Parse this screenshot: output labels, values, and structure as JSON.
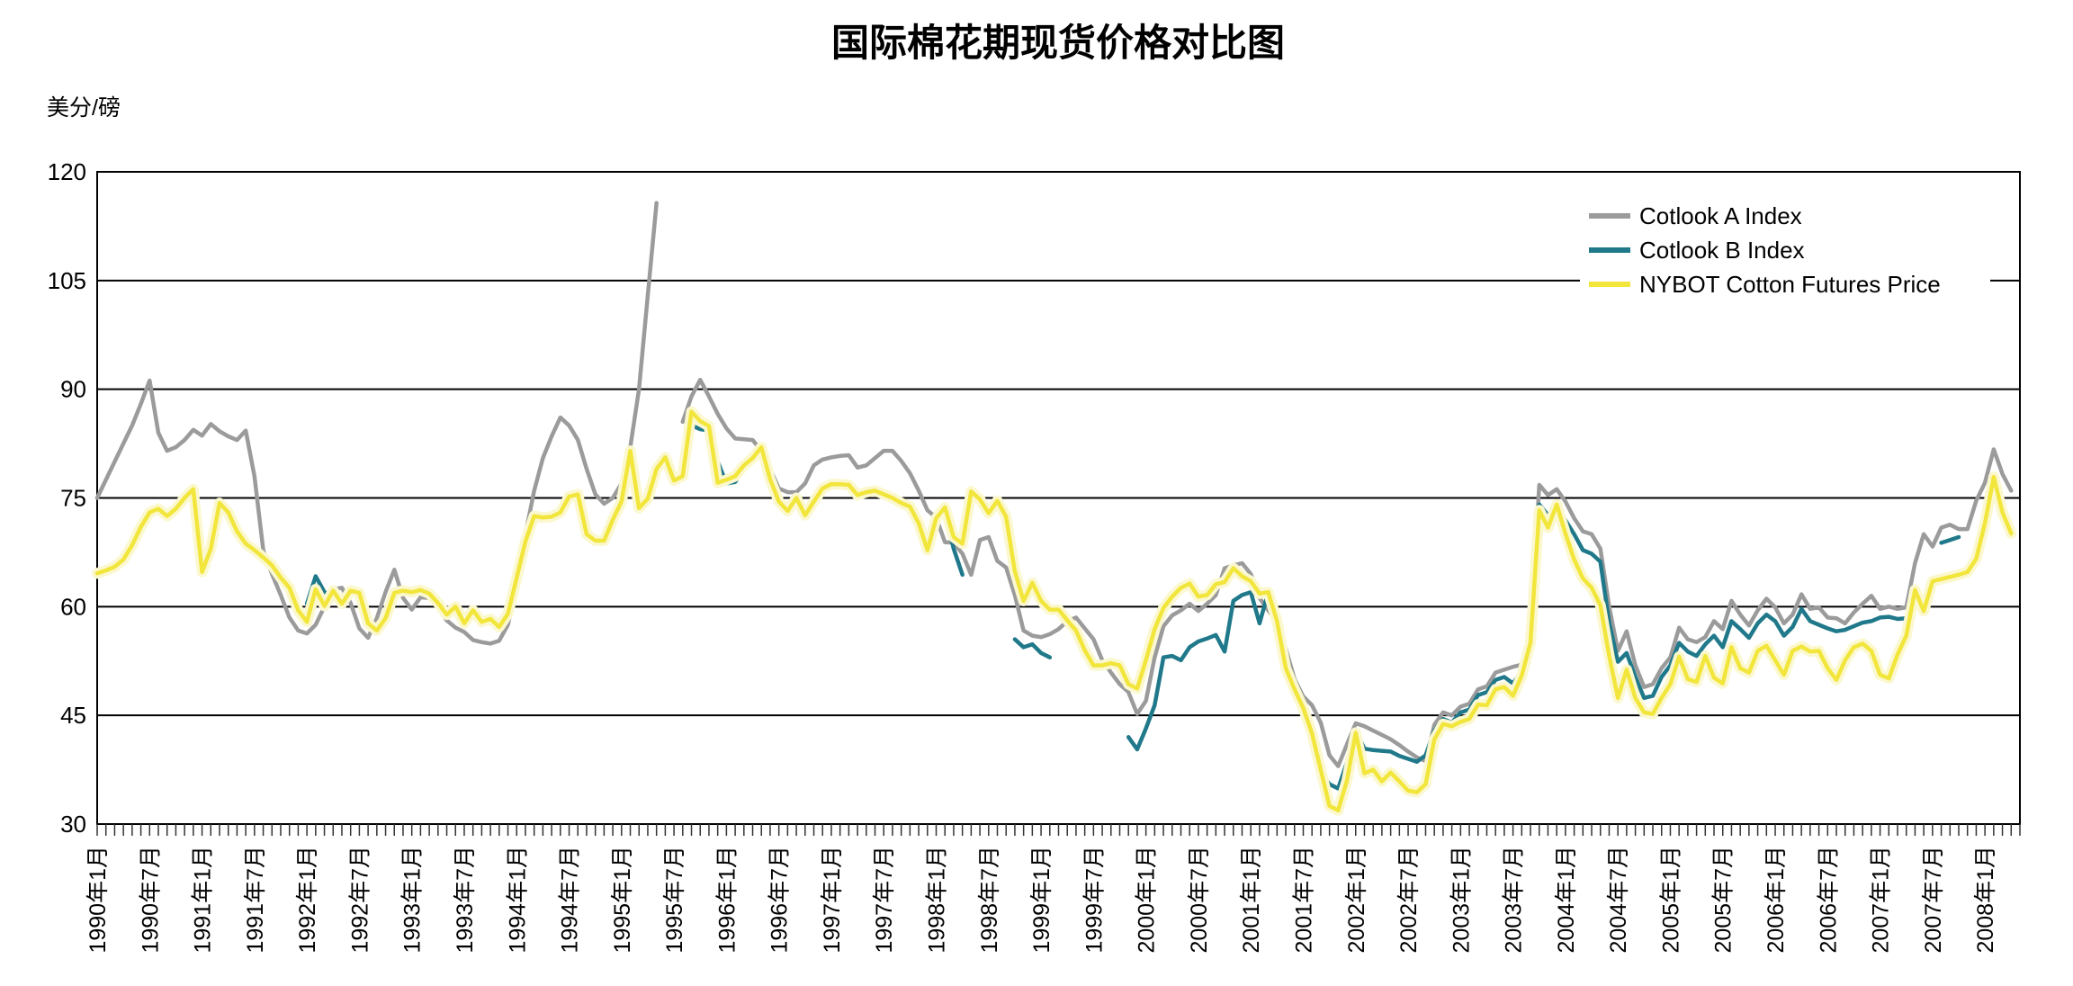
{
  "title": "国际棉花期现货价格对比图",
  "y_axis_unit": "美分/磅",
  "chart_data": {
    "type": "line",
    "title": "国际棉花期现货价格对比图",
    "xlabel": "",
    "ylabel": "美分/磅",
    "ylim": [
      30,
      120
    ],
    "y_ticks": [
      30,
      45,
      60,
      75,
      90,
      105,
      120
    ],
    "grid": "horizontal-black-lines",
    "legend_position": "top-right-inside",
    "x_start": "1990年1月",
    "x_end": "2008年4月",
    "x_points_monthly": 220,
    "x_tick_labels": [
      "1990年1月",
      "1990年7月",
      "1991年1月",
      "1991年7月",
      "1992年1月",
      "1992年7月",
      "1993年1月",
      "1993年7月",
      "1994年1月",
      "1994年7月",
      "1995年1月",
      "1995年7月",
      "1996年1月",
      "1996年7月",
      "1997年1月",
      "1997年7月",
      "1998年1月",
      "1998年7月",
      "1999年1月",
      "1999年7月",
      "2000年1月",
      "2000年7月",
      "2001年1月",
      "2001年7月",
      "2002年1月",
      "2002年7月",
      "2003年1月",
      "2003年7月",
      "2004年1月",
      "2004年7月",
      "2005年1月",
      "2005年7月",
      "2006年1月",
      "2006年7月",
      "2007年1月",
      "2007年7月",
      "2008年1月"
    ],
    "x_label_rotation_deg": -90,
    "series": [
      {
        "name": "Cotlook A Index",
        "color": "#9b9b9b",
        "values": [
          75.0,
          77.5,
          80.0,
          82.5,
          85.0,
          88.0,
          91.2,
          84.0,
          81.5,
          82.0,
          83.0,
          84.4,
          83.6,
          85.2,
          84.2,
          83.5,
          83.0,
          84.3,
          78.0,
          67.8,
          64.5,
          61.6,
          58.5,
          56.7,
          56.3,
          57.5,
          60.0,
          62.4,
          62.6,
          60.5,
          57.0,
          55.7,
          58.4,
          62.0,
          65.1,
          61.2,
          59.6,
          61.3,
          61.2,
          59.8,
          58.1,
          57.1,
          56.5,
          55.4,
          55.1,
          54.9,
          55.3,
          57.5,
          63.0,
          70.0,
          76.0,
          80.5,
          83.5,
          86.1,
          85.0,
          83.0,
          79.0,
          75.5,
          74.2,
          75.0,
          77.0,
          82.0,
          90.0,
          103.0,
          115.7,
          null,
          null,
          85.5,
          89.0,
          91.3,
          89.0,
          86.6,
          84.6,
          83.2,
          83.1,
          83.0,
          81.5,
          79.0,
          76.3,
          75.8,
          75.8,
          77.0,
          79.5,
          80.3,
          80.6,
          80.8,
          80.9,
          79.2,
          79.5,
          80.5,
          81.5,
          81.5,
          80.1,
          78.4,
          76.0,
          73.3,
          72.3,
          68.9,
          68.8,
          67.3,
          64.4,
          69.2,
          69.6,
          66.3,
          65.4,
          61.6,
          56.7,
          56.0,
          55.8,
          56.2,
          56.9,
          58.0,
          58.5,
          57.0,
          55.5,
          52.6,
          50.9,
          49.3,
          48.2,
          45.2,
          47.0,
          53.0,
          57.3,
          58.8,
          59.5,
          60.4,
          59.4,
          60.4,
          61.6,
          65.3,
          65.7,
          66.0,
          64.5,
          61.2,
          59.5,
          57.9,
          54.2,
          50.0,
          47.6,
          46.4,
          44.0,
          39.5,
          38.0,
          41.0,
          43.9,
          43.5,
          42.9,
          42.3,
          41.7,
          40.9,
          40.0,
          39.2,
          38.7,
          43.7,
          45.4,
          45.0,
          46.2,
          46.6,
          48.6,
          49.0,
          50.9,
          51.3,
          51.7,
          52.0,
          56.0,
          76.8,
          75.4,
          76.2,
          74.5,
          72.2,
          70.4,
          70.0,
          68.0,
          60.0,
          53.9,
          56.6,
          51.9,
          48.9,
          49.3,
          51.5,
          53.0,
          57.1,
          55.5,
          55.1,
          55.8,
          58.0,
          56.9,
          60.8,
          58.9,
          57.4,
          59.5,
          61.1,
          59.9,
          57.7,
          58.9,
          61.7,
          59.7,
          59.9,
          58.5,
          58.4,
          57.7,
          59.2,
          60.4,
          61.5,
          59.7,
          60.0,
          59.7,
          59.9,
          66.0,
          70.0,
          68.3,
          70.9,
          71.3,
          70.7,
          70.7,
          74.6,
          77.1,
          81.7,
          78.3,
          76.0
        ]
      },
      {
        "name": "Cotlook B Index",
        "color": "#20798a",
        "values": [
          null,
          null,
          null,
          null,
          null,
          null,
          null,
          null,
          null,
          null,
          null,
          null,
          null,
          null,
          null,
          null,
          null,
          null,
          null,
          null,
          null,
          null,
          null,
          null,
          60.4,
          64.2,
          62.0,
          61.4,
          null,
          null,
          null,
          null,
          null,
          null,
          null,
          null,
          null,
          null,
          null,
          null,
          null,
          null,
          null,
          null,
          null,
          null,
          null,
          null,
          null,
          null,
          null,
          null,
          null,
          null,
          null,
          null,
          null,
          null,
          null,
          null,
          null,
          null,
          null,
          null,
          null,
          null,
          null,
          null,
          85.0,
          84.5,
          84.3,
          80.0,
          77.0,
          77.2,
          79.0,
          80.2,
          81.5,
          77.2,
          74.2,
          72.9,
          74.6,
          72.2,
          74.0,
          null,
          null,
          null,
          null,
          null,
          null,
          null,
          null,
          null,
          null,
          null,
          null,
          null,
          null,
          73.2,
          68.0,
          64.4,
          null,
          null,
          null,
          null,
          null,
          55.5,
          54.4,
          54.8,
          53.6,
          53.0,
          null,
          null,
          null,
          null,
          null,
          null,
          null,
          null,
          42.0,
          40.3,
          43.2,
          46.4,
          53.0,
          53.2,
          52.6,
          54.4,
          55.2,
          55.6,
          56.1,
          53.8,
          60.8,
          61.6,
          62.0,
          57.7,
          62.0,
          56.9,
          52.3,
          48.5,
          46.4,
          43.0,
          37.0,
          35.5,
          34.9,
          38.5,
          42.9,
          40.4,
          40.2,
          40.1,
          40.0,
          39.4,
          39.0,
          38.6,
          39.5,
          42.9,
          44.5,
          44.0,
          45.4,
          45.8,
          47.8,
          48.2,
          49.9,
          50.3,
          49.4,
          51.1,
          55.0,
          74.1,
          72.6,
          74.3,
          71.9,
          70.0,
          67.8,
          67.3,
          66.2,
          57.8,
          52.4,
          53.6,
          50.3,
          47.4,
          47.7,
          50.3,
          51.9,
          55.0,
          53.8,
          53.2,
          54.8,
          56.0,
          54.4,
          58.0,
          56.9,
          55.7,
          57.7,
          58.9,
          58.0,
          56.0,
          57.2,
          59.7,
          58.0,
          57.5,
          57.0,
          56.6,
          56.8,
          57.3,
          57.8,
          58.0,
          58.5,
          58.6,
          58.3,
          58.4,
          null,
          null,
          null,
          68.8,
          69.2,
          69.6,
          null,
          null,
          null,
          null,
          null,
          null
        ]
      },
      {
        "name": "NYBOT Cotton Futures Price",
        "color": "#f2e63c",
        "halo_color": "#fbf8cf",
        "values": [
          64.6,
          65.0,
          65.5,
          66.5,
          68.5,
          71.0,
          73.0,
          73.5,
          72.5,
          73.5,
          75.0,
          76.2,
          64.8,
          68.0,
          74.3,
          73.0,
          70.4,
          68.7,
          67.8,
          66.8,
          65.7,
          64.0,
          62.6,
          59.5,
          57.9,
          62.4,
          60.1,
          62.2,
          60.4,
          62.2,
          61.9,
          57.7,
          56.7,
          58.4,
          61.9,
          62.2,
          62.0,
          62.3,
          61.8,
          60.5,
          58.9,
          60.0,
          57.7,
          59.5,
          57.9,
          58.3,
          57.2,
          59.0,
          64.0,
          69.0,
          72.5,
          72.3,
          72.4,
          73.0,
          75.2,
          75.5,
          70.0,
          69.1,
          69.1,
          72.0,
          74.5,
          81.5,
          73.6,
          74.9,
          79.0,
          80.6,
          77.4,
          78.0,
          86.9,
          85.6,
          84.9,
          77.1,
          77.5,
          78.0,
          79.5,
          80.5,
          82.0,
          77.6,
          74.5,
          73.2,
          75.0,
          72.6,
          74.5,
          76.3,
          76.9,
          76.9,
          76.8,
          75.4,
          75.8,
          76.0,
          75.5,
          75.0,
          74.3,
          73.8,
          71.5,
          67.8,
          72.2,
          73.7,
          69.6,
          68.7,
          75.9,
          74.8,
          72.9,
          74.6,
          72.4,
          64.9,
          60.8,
          63.3,
          60.8,
          59.6,
          59.6,
          58.1,
          56.7,
          54.0,
          51.9,
          51.9,
          52.2,
          51.9,
          49.3,
          48.7,
          52.6,
          56.9,
          59.8,
          61.4,
          62.6,
          63.2,
          61.4,
          61.6,
          63.1,
          63.4,
          65.3,
          64.2,
          63.5,
          61.8,
          62.0,
          58.0,
          51.5,
          48.6,
          46.0,
          42.5,
          37.5,
          32.5,
          31.9,
          36.0,
          42.6,
          37.0,
          37.5,
          35.9,
          37.1,
          35.9,
          34.6,
          34.4,
          35.5,
          41.7,
          43.8,
          43.5,
          44.1,
          44.5,
          46.5,
          46.4,
          48.6,
          48.9,
          47.7,
          50.5,
          55.0,
          73.3,
          70.9,
          74.1,
          70.1,
          66.5,
          63.9,
          62.6,
          60.2,
          53.2,
          47.4,
          51.3,
          47.4,
          45.4,
          45.2,
          47.4,
          49.3,
          53.1,
          50.0,
          49.6,
          53.2,
          50.2,
          49.4,
          54.4,
          51.5,
          50.9,
          53.9,
          54.6,
          52.6,
          50.6,
          53.9,
          54.5,
          53.8,
          53.9,
          51.5,
          49.9,
          52.6,
          54.4,
          54.9,
          53.9,
          50.6,
          50.1,
          53.4,
          56.0,
          62.3,
          59.4,
          63.5,
          63.8,
          64.1,
          64.4,
          64.8,
          66.6,
          71.5,
          77.9,
          73.0,
          70.1
        ]
      }
    ]
  }
}
